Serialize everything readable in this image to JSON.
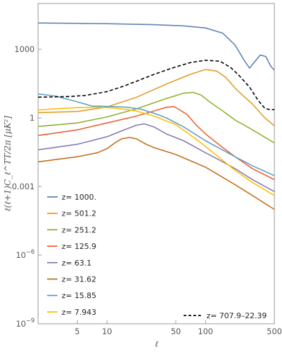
{
  "chart_data": {
    "type": "line",
    "x_scale": "log",
    "y_scale": "log",
    "xlim": [
      2,
      500
    ],
    "ylim": [
      1e-09,
      100000
    ],
    "xlabel": "ℓ",
    "ylabel": "ℓ(ℓ+1)C_ℓ^TT/2π [μK²]",
    "x_ticks": [
      {
        "value": 5,
        "label": "5"
      },
      {
        "value": 10,
        "label": "10"
      },
      {
        "value": 50,
        "label": "50"
      },
      {
        "value": 100,
        "label": "100"
      },
      {
        "value": 500,
        "label": "500"
      }
    ],
    "y_ticks": [
      {
        "value": 1e-09,
        "label": "10",
        "sup": "−9"
      },
      {
        "value": 1e-06,
        "label": "10",
        "sup": "−6"
      },
      {
        "value": 0.001,
        "label": "0.001",
        "sup": ""
      },
      {
        "value": 1,
        "label": "1",
        "sup": ""
      },
      {
        "value": 1000,
        "label": "1000",
        "sup": ""
      }
    ],
    "grid": false,
    "legend_position": "bottom-left",
    "series": [
      {
        "name": "z= 1000.",
        "color": "#5e81b5",
        "dash": false,
        "points": [
          [
            2,
            14000
          ],
          [
            5,
            13500
          ],
          [
            10,
            13000
          ],
          [
            30,
            11800
          ],
          [
            60,
            10500
          ],
          [
            100,
            8500
          ],
          [
            150,
            5000
          ],
          [
            200,
            1500
          ],
          [
            250,
            300
          ],
          [
            280,
            150
          ],
          [
            310,
            260
          ],
          [
            360,
            560
          ],
          [
            410,
            480
          ],
          [
            460,
            180
          ],
          [
            500,
            120
          ]
        ]
      },
      {
        "name": "z= 501.2",
        "color": "#e19c24",
        "dash": false,
        "points": [
          [
            2,
            1.7
          ],
          [
            5,
            1.9
          ],
          [
            10,
            3
          ],
          [
            20,
            8
          ],
          [
            40,
            30
          ],
          [
            70,
            80
          ],
          [
            100,
            130
          ],
          [
            130,
            110
          ],
          [
            160,
            60
          ],
          [
            200,
            20
          ],
          [
            250,
            8
          ],
          [
            300,
            4
          ],
          [
            400,
            1
          ],
          [
            500,
            0.45
          ]
        ]
      },
      {
        "name": "z= 251.2",
        "color": "#8fb032",
        "dash": false,
        "points": [
          [
            2,
            0.42
          ],
          [
            5,
            0.6
          ],
          [
            10,
            1.1
          ],
          [
            20,
            2.5
          ],
          [
            40,
            7
          ],
          [
            60,
            12
          ],
          [
            75,
            13
          ],
          [
            90,
            10
          ],
          [
            110,
            5
          ],
          [
            150,
            2
          ],
          [
            200,
            0.8
          ],
          [
            300,
            0.3
          ],
          [
            500,
            0.08
          ]
        ]
      },
      {
        "name": "z= 125.9",
        "color": "#eb6235",
        "dash": false,
        "points": [
          [
            2,
            0.17
          ],
          [
            5,
            0.3
          ],
          [
            10,
            0.6
          ],
          [
            20,
            1.2
          ],
          [
            30,
            2
          ],
          [
            40,
            2.9
          ],
          [
            48,
            3.1
          ],
          [
            55,
            2.2
          ],
          [
            65,
            1.4
          ],
          [
            80,
            0.5
          ],
          [
            100,
            0.2
          ],
          [
            150,
            0.05
          ],
          [
            200,
            0.02
          ],
          [
            300,
            0.006
          ],
          [
            500,
            0.002
          ]
        ]
      },
      {
        "name": "z= 63.1",
        "color": "#8778b3",
        "dash": false,
        "points": [
          [
            2,
            0.04
          ],
          [
            5,
            0.07
          ],
          [
            10,
            0.15
          ],
          [
            15,
            0.3
          ],
          [
            20,
            0.48
          ],
          [
            24,
            0.55
          ],
          [
            30,
            0.4
          ],
          [
            40,
            0.2
          ],
          [
            60,
            0.1
          ],
          [
            100,
            0.03
          ],
          [
            150,
            0.012
          ],
          [
            200,
            0.006
          ],
          [
            300,
            0.002
          ],
          [
            500,
            0.0006
          ]
        ]
      },
      {
        "name": "z= 31.62",
        "color": "#c56e1a",
        "dash": false,
        "points": [
          [
            2,
            0.012
          ],
          [
            5,
            0.02
          ],
          [
            8,
            0.03
          ],
          [
            10,
            0.045
          ],
          [
            12,
            0.08
          ],
          [
            14,
            0.12
          ],
          [
            17,
            0.14
          ],
          [
            20,
            0.12
          ],
          [
            25,
            0.07
          ],
          [
            30,
            0.05
          ],
          [
            50,
            0.025
          ],
          [
            100,
            0.007
          ],
          [
            200,
            0.0012
          ],
          [
            300,
            0.0004
          ],
          [
            500,
            0.0001
          ]
        ]
      },
      {
        "name": "z= 15.85",
        "color": "#5d9ec7",
        "dash": false,
        "points": [
          [
            2,
            11
          ],
          [
            3,
            9
          ],
          [
            5,
            5
          ],
          [
            7,
            3.3
          ],
          [
            9,
            3.2
          ],
          [
            12,
            3.1
          ],
          [
            16,
            2.9
          ],
          [
            22,
            2.4
          ],
          [
            30,
            1.6
          ],
          [
            40,
            1
          ],
          [
            60,
            0.4
          ],
          [
            100,
            0.1
          ],
          [
            200,
            0.02
          ],
          [
            300,
            0.008
          ],
          [
            500,
            0.003
          ]
        ]
      },
      {
        "name": "z= 7.943",
        "color": "#ffbf00",
        "dash": false,
        "points": [
          [
            2,
            2.2
          ],
          [
            3,
            2.5
          ],
          [
            5,
            2.8
          ],
          [
            8,
            2.9
          ],
          [
            12,
            2.7
          ],
          [
            20,
            2
          ],
          [
            30,
            1.2
          ],
          [
            50,
            0.5
          ],
          [
            80,
            0.12
          ],
          [
            120,
            0.03
          ],
          [
            200,
            0.005
          ],
          [
            300,
            0.0015
          ],
          [
            500,
            0.0004
          ]
        ]
      },
      {
        "name": "z= 707.9–22.39",
        "color": "#000000",
        "dash": true,
        "points": [
          [
            2,
            8
          ],
          [
            4,
            8.5
          ],
          [
            6,
            9.5
          ],
          [
            10,
            14
          ],
          [
            15,
            25
          ],
          [
            20,
            40
          ],
          [
            30,
            80
          ],
          [
            50,
            170
          ],
          [
            70,
            260
          ],
          [
            100,
            330
          ],
          [
            140,
            300
          ],
          [
            180,
            160
          ],
          [
            220,
            70
          ],
          [
            280,
            22
          ],
          [
            340,
            6
          ],
          [
            400,
            2.6
          ],
          [
            450,
            2.3
          ],
          [
            500,
            2.3
          ]
        ]
      }
    ]
  }
}
